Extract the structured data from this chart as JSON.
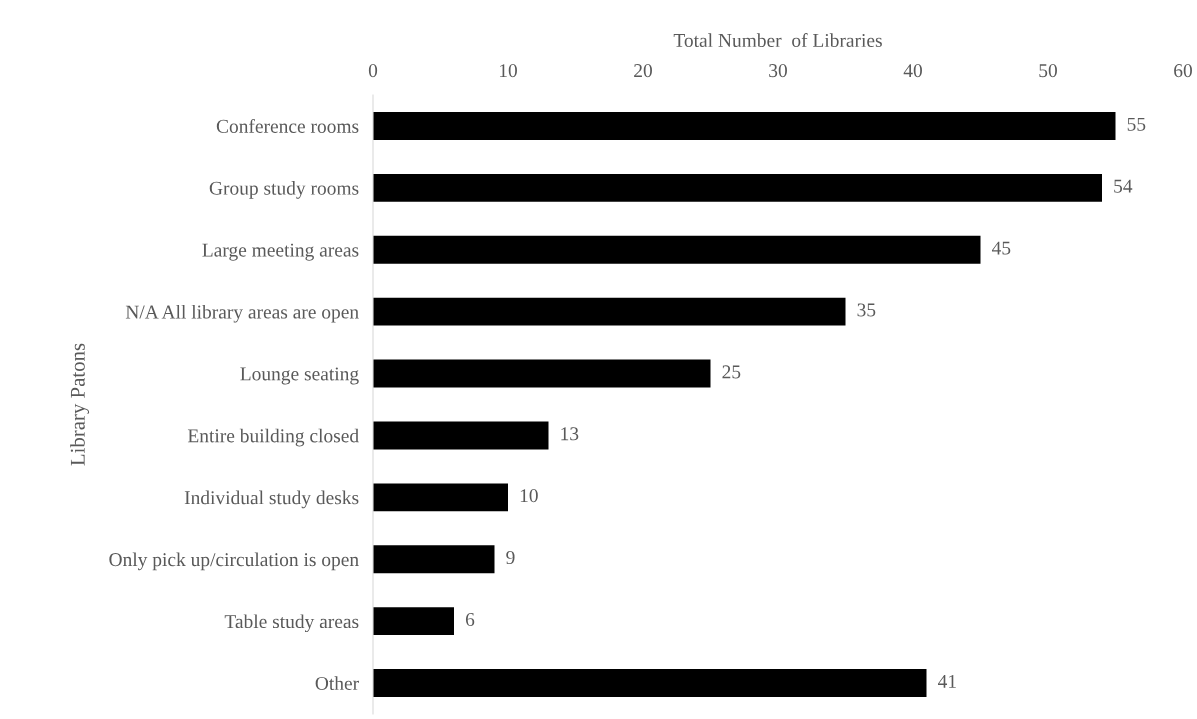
{
  "chart_data": {
    "type": "bar",
    "orientation": "horizontal",
    "xlabel": "Total Number  of Libraries",
    "ylabel": "Library Patons",
    "categories": [
      "Conference rooms",
      "Group study rooms",
      "Large meeting areas",
      "N/A All library areas are open",
      "Lounge seating",
      "Entire building closed",
      "Individual study desks",
      "Only pick up/circulation is open",
      "Table study areas",
      "Other"
    ],
    "values": [
      55,
      54,
      45,
      35,
      25,
      13,
      10,
      9,
      6,
      41
    ],
    "color": "#000000",
    "xlim": [
      0,
      60
    ],
    "xticks": [
      0,
      10,
      20,
      30,
      40,
      50,
      60
    ],
    "data_labels": true,
    "grid": false,
    "legend": false
  }
}
